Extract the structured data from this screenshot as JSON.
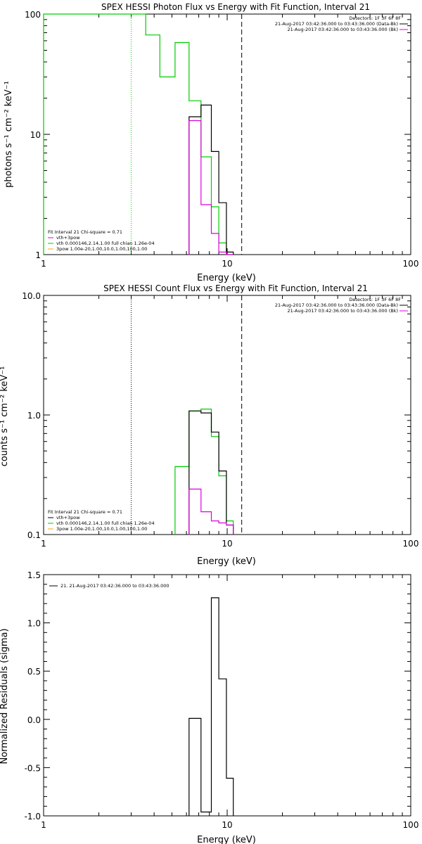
{
  "colors": {
    "black": "#000000",
    "green": "#00cc00",
    "magenta": "#dd00dd",
    "orange": "#ffa500"
  },
  "chart_data": [
    {
      "type": "line",
      "title": "SPEX HESSI Photon Flux vs Energy with Fit Function, Interval 21",
      "xlabel": "Energy (keV)",
      "ylabel": "photons s⁻¹ cm⁻² keV⁻¹",
      "xscale": "log",
      "yscale": "log",
      "xlim": [
        1,
        100
      ],
      "ylim": [
        1,
        100
      ],
      "x_ticks": [
        "1",
        "10",
        "100"
      ],
      "y_ticks": [
        {
          "v": 1,
          "label": "1"
        },
        {
          "v": 10,
          "label": "10"
        },
        {
          "v": 100,
          "label": "100"
        }
      ],
      "vlines": [
        {
          "x": 3.0,
          "style": "dotted",
          "color": "#00cc00"
        },
        {
          "x": 12.0,
          "style": "dashed",
          "color": "#000000"
        }
      ],
      "legend_tr": {
        "header": "Detectors: 1F 3F 6F 8F",
        "entries": [
          {
            "text": "21-Aug-2017 03:42:36.000 to 03:43:36.000 (Data-Bk)",
            "color": "#000000"
          },
          {
            "text": "21-Aug-2017 03:42:36.000 to 03:43:36.000 (Bk)",
            "color": "#dd00dd"
          }
        ]
      },
      "legend_bl": {
        "header": "Fit Interval 21    Chi-square = 0.71",
        "entries": [
          {
            "text": "vth+3pow",
            "color": "#dd00dd"
          },
          {
            "text": "vth 0.000146,2.14,1.00   full chian 1.26e-04",
            "color": "#00cc00"
          },
          {
            "text": "3pow 1.00e-20,1.00,10.0,1.00,100,1.00",
            "color": "#ffa500"
          }
        ]
      },
      "series": [
        {
          "color": "#00cc00",
          "edges": [
            1,
            3.0,
            3.6,
            4.3,
            5.2,
            6.2,
            7.2,
            8.2,
            9.0,
            9.9,
            10.8
          ],
          "values": [
            100,
            100,
            67,
            30,
            58,
            19,
            6.5,
            2.5,
            1.25,
            1
          ]
        },
        {
          "color": "#000000",
          "edges": [
            6.2,
            7.2,
            8.2,
            9.0,
            9.9,
            10.8
          ],
          "values": [
            14,
            17.5,
            7.2,
            2.7,
            1.05
          ]
        },
        {
          "color": "#dd00dd",
          "edges": [
            6.2,
            7.2,
            8.2,
            9.0,
            9.9,
            10.8
          ],
          "values": [
            13,
            2.6,
            1.5,
            1.05,
            1.0
          ]
        }
      ]
    },
    {
      "type": "line",
      "title": "SPEX HESSI Count Flux vs Energy with Fit Function, Interval 21",
      "xlabel": "Energy (keV)",
      "ylabel": "counts s⁻¹ cm⁻² keV⁻¹",
      "xscale": "log",
      "yscale": "log",
      "xlim": [
        1,
        100
      ],
      "ylim": [
        0.1,
        10
      ],
      "x_ticks": [
        "1",
        "10",
        "100"
      ],
      "y_ticks": [
        {
          "v": 0.1,
          "label": "0.1"
        },
        {
          "v": 1,
          "label": "1.0"
        },
        {
          "v": 10,
          "label": "10.0"
        }
      ],
      "vlines": [
        {
          "x": 3.0,
          "style": "dotted",
          "color": "#000000"
        },
        {
          "x": 12.0,
          "style": "dashed",
          "color": "#000000"
        }
      ],
      "legend_tr": {
        "header": "Detectors: 1F 3F 6F 8F",
        "entries": [
          {
            "text": "21-Aug-2017 03:42:36.000 to 03:43:36.000 (Data-Bk)",
            "color": "#000000"
          },
          {
            "text": "21-Aug-2017 03:42:36.000 to 03:43:36.000 (Bk)",
            "color": "#dd00dd"
          }
        ]
      },
      "legend_bl": {
        "header": "Fit Interval 21    Chi-square = 0.71",
        "entries": [
          {
            "text": "vth+3pow",
            "color": "#000000"
          },
          {
            "text": "vth 0.000146,2.14,1.00   full chian 1.26e-04",
            "color": "#00cc00"
          },
          {
            "text": "3pow 1.00e-20,1.00,10.0,1.00,100,1.00",
            "color": "#ffa500"
          }
        ]
      },
      "series": [
        {
          "color": "#00cc00",
          "edges": [
            5.2,
            6.2,
            7.2,
            8.2,
            9.0,
            9.9,
            10.8
          ],
          "values": [
            0.37,
            1.08,
            1.12,
            0.66,
            0.31,
            0.13
          ]
        },
        {
          "color": "#000000",
          "edges": [
            6.2,
            7.2,
            8.2,
            9.0,
            9.9,
            10.8
          ],
          "values": [
            1.08,
            1.04,
            0.72,
            0.34,
            0.12
          ]
        },
        {
          "color": "#dd00dd",
          "edges": [
            6.2,
            7.2,
            8.2,
            9.0,
            9.9,
            10.8
          ],
          "values": [
            0.24,
            0.155,
            0.13,
            0.125,
            0.12
          ]
        }
      ]
    },
    {
      "type": "line",
      "title": "",
      "xlabel": "Energy (keV)",
      "ylabel": "Normalized Residuals (sigma)",
      "xscale": "log",
      "yscale": "linear",
      "xlim": [
        1,
        100
      ],
      "ylim": [
        -1.0,
        1.5
      ],
      "x_ticks": [
        "1",
        "10",
        "100"
      ],
      "y_ticks": [
        {
          "v": -1.0,
          "label": "-1.0"
        },
        {
          "v": -0.5,
          "label": "-0.5"
        },
        {
          "v": 0.0,
          "label": "0.0"
        },
        {
          "v": 0.5,
          "label": "0.5"
        },
        {
          "v": 1.0,
          "label": "1.0"
        },
        {
          "v": 1.5,
          "label": "1.5"
        }
      ],
      "vlines": [],
      "legend_tl": {
        "entries": [
          {
            "text": "21. 21-Aug-2017 03:42:36.000 to 03:43:36.000",
            "color": "#000000"
          }
        ]
      },
      "series": [
        {
          "color": "#000000",
          "edges": [
            6.2,
            7.2,
            8.2,
            9.0,
            9.9,
            10.8
          ],
          "values": [
            0.01,
            -0.96,
            1.26,
            0.42,
            -0.61
          ],
          "baseline": -1.0
        }
      ]
    }
  ]
}
